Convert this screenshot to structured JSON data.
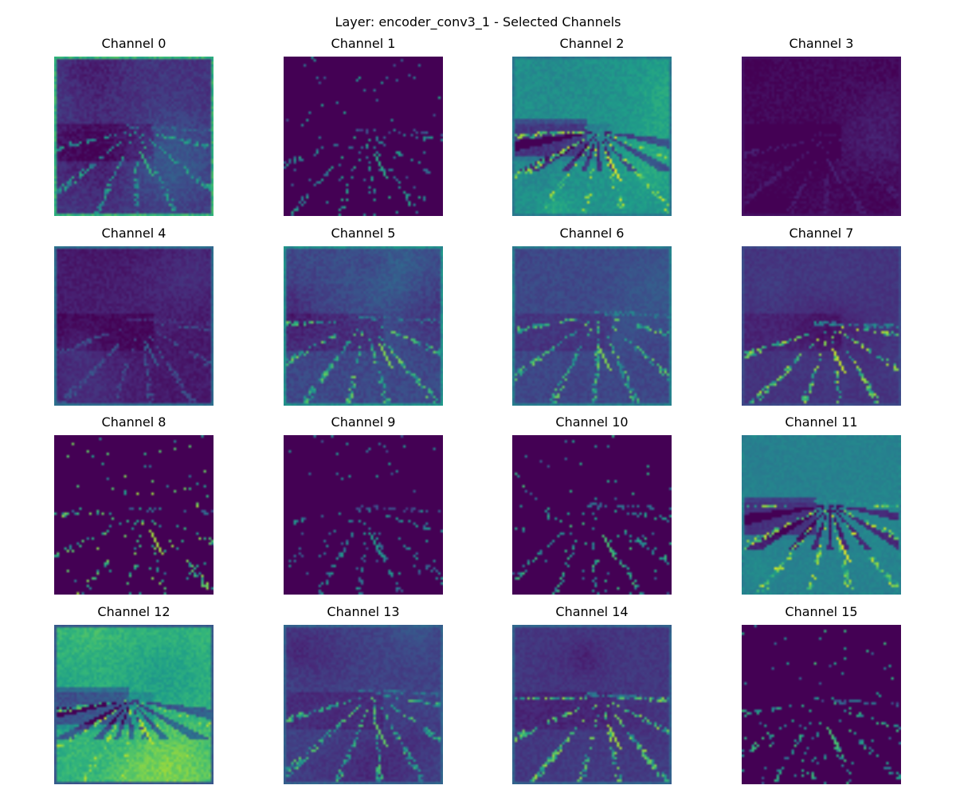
{
  "figure": {
    "title": "Layer: encoder_conv3_1 - Selected Channels",
    "colormap": "viridis"
  },
  "channels": [
    {
      "title": "Channel 0",
      "style": {
        "base": 0.15,
        "bg_var": 0.1,
        "edge_level": 0.72,
        "streak_level": 0.65,
        "sparse": false
      }
    },
    {
      "title": "Channel 1",
      "style": {
        "base": 0.0,
        "bg_var": 0.0,
        "edge_level": 0.0,
        "streak_level": 0.6,
        "sparse": true
      }
    },
    {
      "title": "Channel 2",
      "style": {
        "base": 0.52,
        "bg_var": 0.1,
        "edge_level": 0.45,
        "streak_level": 0.95,
        "sparse": false,
        "dark_streaks": true
      }
    },
    {
      "title": "Channel 3",
      "style": {
        "base": 0.02,
        "bg_var": 0.07,
        "edge_level": 0.05,
        "streak_level": 0.1,
        "sparse": false
      }
    },
    {
      "title": "Channel 4",
      "style": {
        "base": 0.07,
        "bg_var": 0.07,
        "edge_level": 0.4,
        "streak_level": 0.3,
        "sparse": false
      }
    },
    {
      "title": "Channel 5",
      "style": {
        "base": 0.22,
        "bg_var": 0.1,
        "edge_level": 0.55,
        "streak_level": 0.8,
        "sparse": false
      }
    },
    {
      "title": "Channel 6",
      "style": {
        "base": 0.22,
        "bg_var": 0.08,
        "edge_level": 0.48,
        "streak_level": 0.8,
        "sparse": false
      }
    },
    {
      "title": "Channel 7",
      "style": {
        "base": 0.15,
        "bg_var": 0.06,
        "edge_level": 0.25,
        "streak_level": 0.9,
        "sparse": false
      }
    },
    {
      "title": "Channel 8",
      "style": {
        "base": 0.0,
        "bg_var": 0.0,
        "edge_level": 0.0,
        "streak_level": 0.85,
        "sparse": true
      }
    },
    {
      "title": "Channel 9",
      "style": {
        "base": 0.0,
        "bg_var": 0.0,
        "edge_level": 0.0,
        "streak_level": 0.55,
        "sparse": true
      }
    },
    {
      "title": "Channel 10",
      "style": {
        "base": 0.0,
        "bg_var": 0.0,
        "edge_level": 0.0,
        "streak_level": 0.7,
        "sparse": true
      }
    },
    {
      "title": "Channel 11",
      "style": {
        "base": 0.44,
        "bg_var": 0.06,
        "edge_level": 0.5,
        "streak_level": 0.95,
        "sparse": false,
        "dark_streaks": true
      }
    },
    {
      "title": "Channel 12",
      "style": {
        "base": 0.66,
        "bg_var": 0.12,
        "edge_level": 0.3,
        "streak_level": 0.9,
        "sparse": false,
        "dark_streaks": true
      }
    },
    {
      "title": "Channel 13",
      "style": {
        "base": 0.2,
        "bg_var": 0.08,
        "edge_level": 0.35,
        "streak_level": 0.75,
        "sparse": false
      }
    },
    {
      "title": "Channel 14",
      "style": {
        "base": 0.16,
        "bg_var": 0.07,
        "edge_level": 0.35,
        "streak_level": 0.85,
        "sparse": false
      }
    },
    {
      "title": "Channel 15",
      "style": {
        "base": 0.0,
        "bg_var": 0.0,
        "edge_level": 0.0,
        "streak_level": 0.7,
        "sparse": true
      }
    }
  ]
}
